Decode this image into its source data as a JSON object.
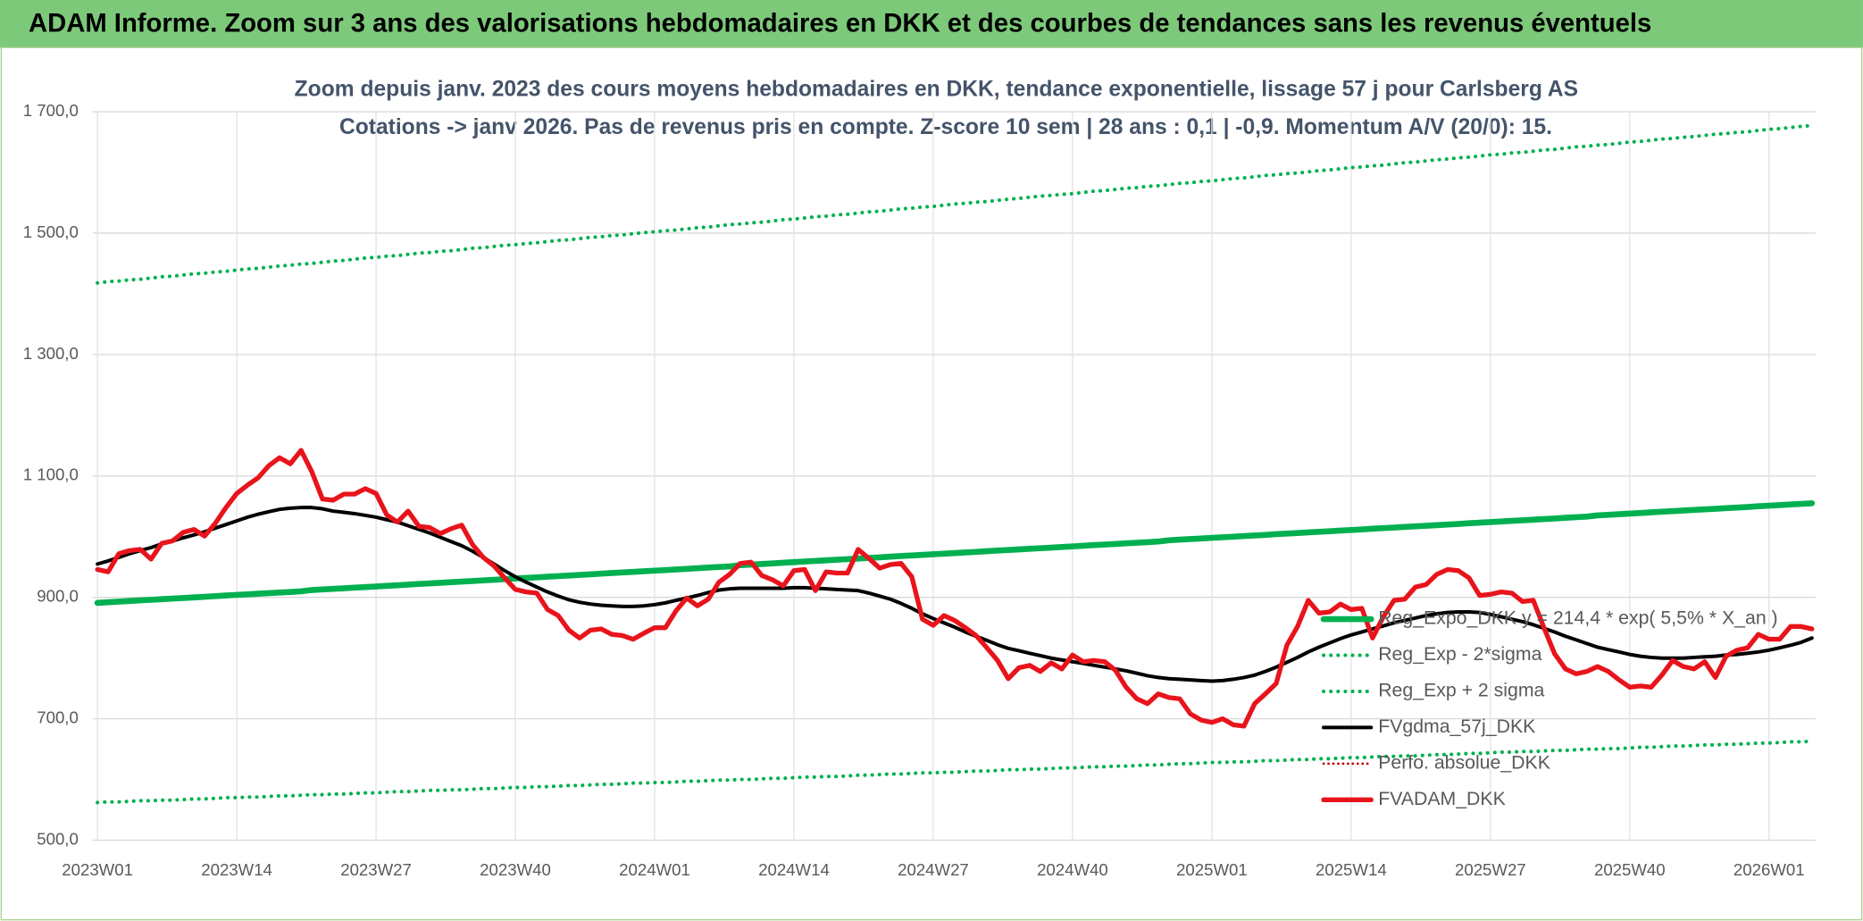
{
  "header": {
    "title": "ADAM Informe. Zoom sur 3 ans des valorisations hebdomadaires en DKK et des courbes de tendances sans les revenus éventuels"
  },
  "chart_data": {
    "type": "line",
    "title": "Zoom depuis janv. 2023 des cours moyens hebdomadaires en DKK, tendance exponentielle, lissage 57 j pour Carlsberg AS",
    "subtitle": "Cotations -> janv 2026. Pas de revenus pris en compte. Z-score 10 sem | 28 ans : 0,1 | -0,9. Momentum A/V (20/0): 15.",
    "categories": [
      "2023W01",
      null,
      null,
      null,
      null,
      null,
      null,
      null,
      null,
      null,
      null,
      null,
      null,
      "2023W14",
      null,
      null,
      null,
      null,
      null,
      null,
      null,
      null,
      null,
      null,
      null,
      null,
      "2023W27",
      null,
      null,
      null,
      null,
      null,
      null,
      null,
      null,
      null,
      null,
      null,
      null,
      "2023W40",
      null,
      null,
      null,
      null,
      null,
      null,
      null,
      null,
      null,
      null,
      null,
      null,
      "2024W01",
      null,
      null,
      null,
      null,
      null,
      null,
      null,
      null,
      null,
      null,
      null,
      null,
      "2024W14",
      null,
      null,
      null,
      null,
      null,
      null,
      null,
      null,
      null,
      null,
      null,
      null,
      "2024W27",
      null,
      null,
      null,
      null,
      null,
      null,
      null,
      null,
      null,
      null,
      null,
      null,
      "2024W40",
      null,
      null,
      null,
      null,
      null,
      null,
      null,
      null,
      null,
      null,
      null,
      null,
      "2025W01",
      null,
      null,
      null,
      null,
      null,
      null,
      null,
      null,
      null,
      null,
      null,
      null,
      "2025W14",
      null,
      null,
      null,
      null,
      null,
      null,
      null,
      null,
      null,
      null,
      null,
      null,
      "2025W27",
      null,
      null,
      null,
      null,
      null,
      null,
      null,
      null,
      null,
      null,
      null,
      null,
      "2025W40",
      null,
      null,
      null,
      null,
      null,
      null,
      null,
      null,
      null,
      null,
      null,
      null,
      "2026W01",
      null,
      null,
      null,
      null
    ],
    "ylim": [
      500,
      1700
    ],
    "yticks": [
      {
        "value": 500,
        "label": "500,0"
      },
      {
        "value": 700,
        "label": "700,0"
      },
      {
        "value": 900,
        "label": "900,0"
      },
      {
        "value": 1100,
        "label": "1 100,0"
      },
      {
        "value": 1300,
        "label": "1 300,0"
      },
      {
        "value": 1500,
        "label": "1 500,0"
      },
      {
        "value": 1700,
        "label": "1 700,0"
      }
    ],
    "grid": true,
    "legend": "right",
    "series": [
      {
        "name": "Reg_Expo_DKK   y = 214,4 * exp( 5,5% *  X_an )",
        "color": "#00b050",
        "style": "solid",
        "width": 5,
        "values": [
          891,
          892,
          893,
          894,
          895,
          896,
          897,
          898,
          899,
          900,
          901,
          902,
          903,
          904,
          905,
          906,
          907,
          908,
          909,
          910,
          912,
          913,
          914,
          915,
          916,
          917,
          918,
          919,
          920,
          921,
          922,
          923,
          924,
          925,
          926,
          927,
          928,
          929,
          930,
          931,
          932,
          933,
          934,
          935,
          936,
          937,
          938,
          939,
          940,
          941,
          942,
          943,
          944,
          945,
          946,
          947,
          948,
          949,
          950,
          951,
          953,
          954,
          955,
          956,
          957,
          958,
          959,
          960,
          961,
          962,
          963,
          964,
          965,
          966,
          967,
          968,
          969,
          970,
          971,
          972,
          973,
          974,
          975,
          976,
          977,
          978,
          979,
          980,
          981,
          982,
          983,
          984,
          985,
          986,
          987,
          988,
          989,
          990,
          991,
          992,
          994,
          995,
          996,
          997,
          998,
          999,
          1000,
          1001,
          1002,
          1003,
          1004,
          1005,
          1006,
          1007,
          1008,
          1009,
          1010,
          1011,
          1012,
          1013,
          1014,
          1015,
          1016,
          1017,
          1018,
          1019,
          1020,
          1021,
          1022,
          1023,
          1024,
          1025,
          1026,
          1027,
          1028,
          1029,
          1030,
          1031,
          1032,
          1033,
          1035,
          1036,
          1037,
          1038,
          1039,
          1040,
          1041,
          1042,
          1043,
          1044,
          1045,
          1046,
          1047,
          1048,
          1049,
          1050,
          1051,
          1052,
          1053,
          1054,
          1055
        ]
      },
      {
        "name": "Reg_Exp - 2*sigma",
        "color": "#00b050",
        "style": "dotted",
        "width": 3,
        "values": [
          562,
          563,
          563,
          564,
          565,
          565,
          566,
          566,
          567,
          568,
          568,
          569,
          570,
          570,
          571,
          571,
          572,
          573,
          573,
          574,
          575,
          575,
          576,
          576,
          577,
          578,
          578,
          579,
          580,
          580,
          581,
          582,
          582,
          583,
          583,
          584,
          585,
          585,
          586,
          587,
          587,
          588,
          588,
          589,
          590,
          590,
          591,
          592,
          592,
          593,
          594,
          594,
          595,
          595,
          596,
          597,
          597,
          598,
          599,
          599,
          600,
          600,
          601,
          602,
          602,
          603,
          604,
          604,
          605,
          605,
          606,
          607,
          607,
          608,
          609,
          609,
          610,
          611,
          611,
          612,
          612,
          613,
          614,
          614,
          615,
          616,
          616,
          617,
          617,
          618,
          619,
          619,
          620,
          621,
          621,
          622,
          622,
          623,
          624,
          624,
          625,
          626,
          626,
          627,
          628,
          628,
          629,
          629,
          630,
          631,
          631,
          632,
          633,
          633,
          634,
          634,
          635,
          636,
          636,
          637,
          638,
          638,
          639,
          639,
          640,
          641,
          641,
          642,
          643,
          643,
          644,
          645,
          645,
          646,
          646,
          647,
          648,
          648,
          649,
          650,
          650,
          651,
          651,
          652,
          653,
          653,
          654,
          655,
          655,
          656,
          657,
          657,
          658,
          658,
          659,
          660,
          660,
          661,
          662,
          662,
          663
        ]
      },
      {
        "name": "Reg_Exp + 2 sigma",
        "color": "#00b050",
        "style": "dotted",
        "width": 3,
        "values": [
          1418,
          1420,
          1421,
          1423,
          1424,
          1426,
          1428,
          1429,
          1431,
          1433,
          1434,
          1436,
          1437,
          1439,
          1441,
          1442,
          1444,
          1446,
          1447,
          1449,
          1450,
          1452,
          1454,
          1455,
          1457,
          1459,
          1460,
          1462,
          1463,
          1465,
          1467,
          1468,
          1470,
          1471,
          1473,
          1475,
          1476,
          1478,
          1480,
          1481,
          1483,
          1484,
          1486,
          1488,
          1489,
          1491,
          1493,
          1494,
          1496,
          1497,
          1499,
          1501,
          1502,
          1504,
          1505,
          1507,
          1509,
          1510,
          1512,
          1514,
          1515,
          1517,
          1518,
          1520,
          1522,
          1523,
          1525,
          1527,
          1528,
          1530,
          1531,
          1533,
          1535,
          1536,
          1538,
          1540,
          1541,
          1543,
          1544,
          1546,
          1548,
          1549,
          1551,
          1552,
          1554,
          1556,
          1557,
          1559,
          1561,
          1562,
          1564,
          1565,
          1567,
          1569,
          1570,
          1572,
          1574,
          1575,
          1577,
          1578,
          1580,
          1582,
          1583,
          1585,
          1586,
          1588,
          1590,
          1591,
          1593,
          1595,
          1596,
          1598,
          1599,
          1601,
          1603,
          1604,
          1606,
          1608,
          1609,
          1611,
          1612,
          1614,
          1616,
          1617,
          1619,
          1621,
          1622,
          1624,
          1625,
          1627,
          1629,
          1630,
          1632,
          1633,
          1635,
          1637,
          1638,
          1640,
          1642,
          1643,
          1645,
          1646,
          1648,
          1650,
          1651,
          1653,
          1655,
          1656,
          1658,
          1659,
          1661,
          1663,
          1664,
          1666,
          1667,
          1669,
          1671,
          1672,
          1674,
          1676,
          1677
        ]
      },
      {
        "name": "FVgdma_57j_DKK",
        "color": "#000000",
        "style": "solid",
        "width": 3,
        "values": [
          955,
          960,
          966,
          972,
          977,
          982,
          988,
          993,
          998,
          1003,
          1008,
          1014,
          1020,
          1026,
          1032,
          1037,
          1041,
          1045,
          1047,
          1048,
          1048,
          1046,
          1042,
          1040,
          1038,
          1035,
          1032,
          1028,
          1024,
          1018,
          1012,
          1006,
          999,
          992,
          985,
          976,
          966,
          955,
          944,
          934,
          925,
          917,
          909,
          902,
          896,
          892,
          889,
          887,
          886,
          885,
          885,
          886,
          888,
          891,
          895,
          899,
          903,
          908,
          912,
          914,
          915,
          915,
          915,
          915,
          915,
          916,
          916,
          915,
          914,
          913,
          912,
          911,
          907,
          902,
          897,
          890,
          882,
          873,
          865,
          858,
          851,
          843,
          836,
          829,
          822,
          816,
          812,
          808,
          804,
          800,
          797,
          794,
          791,
          788,
          785,
          782,
          779,
          775,
          771,
          768,
          766,
          765,
          764,
          763,
          762,
          763,
          765,
          768,
          772,
          778,
          785,
          793,
          801,
          810,
          818,
          825,
          832,
          838,
          843,
          848,
          853,
          858,
          862,
          866,
          870,
          873,
          875,
          876,
          876,
          875,
          872,
          868,
          864,
          860,
          855,
          849,
          843,
          836,
          830,
          824,
          818,
          814,
          810,
          806,
          803,
          801,
          800,
          800,
          800,
          801,
          802,
          803,
          805,
          806,
          808,
          810,
          813,
          817,
          821,
          826,
          833
        ]
      },
      {
        "name": "Perfo. absolue_DKK",
        "color": "#c00000",
        "style": "dotted",
        "width": 2,
        "values": [
          946,
          942,
          972,
          977,
          979,
          963,
          989,
          993,
          1007,
          1012,
          1001,
          1022,
          1048,
          1071,
          1085,
          1097,
          1117,
          1130,
          1120,
          1142,
          1107,
          1062,
          1060,
          1070,
          1070,
          1079,
          1071,
          1036,
          1024,
          1042,
          1017,
          1015,
          1005,
          1013,
          1019,
          987,
          966,
          952,
          932,
          913,
          909,
          907,
          880,
          870,
          846,
          833,
          846,
          848,
          839,
          837,
          831,
          841,
          850,
          850,
          878,
          899,
          886,
          897,
          925,
          938,
          956,
          958,
          936,
          929,
          919,
          944,
          946,
          911,
          942,
          940,
          940,
          979,
          964,
          948,
          954,
          956,
          934,
          864,
          854,
          870,
          862,
          850,
          837,
          817,
          796,
          766,
          784,
          788,
          778,
          792,
          782,
          805,
          794,
          796,
          794,
          780,
          752,
          733,
          725,
          741,
          735,
          733,
          708,
          698,
          694,
          700,
          690,
          688,
          725,
          741,
          758,
          821,
          852,
          895,
          874,
          876,
          889,
          880,
          882,
          833,
          868,
          895,
          897,
          917,
          921,
          938,
          946,
          944,
          932,
          903,
          905,
          909,
          907,
          893,
          895,
          850,
          807,
          782,
          774,
          778,
          786,
          778,
          764,
          752,
          754,
          752,
          772,
          796,
          786,
          782,
          794,
          768,
          803,
          813,
          817,
          839,
          831,
          831,
          852,
          852,
          848
        ]
      },
      {
        "name": "FVADAM_DKK",
        "color": "#e8141c",
        "style": "solid",
        "width": 4,
        "values": [
          946,
          942,
          972,
          977,
          979,
          963,
          989,
          993,
          1007,
          1012,
          1001,
          1022,
          1048,
          1071,
          1085,
          1097,
          1117,
          1130,
          1120,
          1142,
          1107,
          1062,
          1060,
          1070,
          1070,
          1079,
          1071,
          1036,
          1024,
          1042,
          1017,
          1015,
          1005,
          1013,
          1019,
          987,
          966,
          952,
          932,
          913,
          909,
          907,
          880,
          870,
          846,
          833,
          846,
          848,
          839,
          837,
          831,
          841,
          850,
          850,
          878,
          899,
          886,
          897,
          925,
          938,
          956,
          958,
          936,
          929,
          919,
          944,
          946,
          911,
          942,
          940,
          940,
          979,
          964,
          948,
          954,
          956,
          934,
          864,
          854,
          870,
          862,
          850,
          837,
          817,
          796,
          766,
          784,
          788,
          778,
          792,
          782,
          805,
          794,
          796,
          794,
          780,
          752,
          733,
          725,
          741,
          735,
          733,
          708,
          698,
          694,
          700,
          690,
          688,
          725,
          741,
          758,
          821,
          852,
          895,
          874,
          876,
          889,
          880,
          882,
          833,
          868,
          895,
          897,
          917,
          921,
          938,
          946,
          944,
          932,
          903,
          905,
          909,
          907,
          893,
          895,
          850,
          807,
          782,
          774,
          778,
          786,
          778,
          764,
          752,
          754,
          752,
          772,
          796,
          786,
          782,
          794,
          768,
          803,
          813,
          817,
          839,
          831,
          831,
          852,
          852,
          848
        ]
      }
    ]
  }
}
